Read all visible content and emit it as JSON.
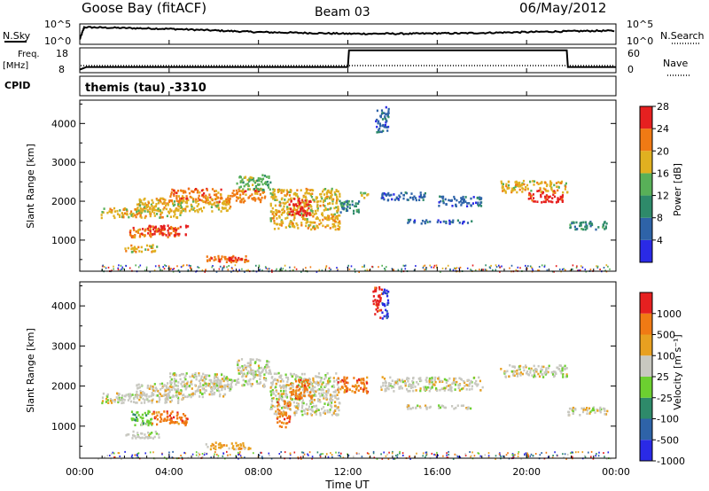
{
  "header": {
    "station": "Goose Bay (fitACF)",
    "beam": "Beam 03",
    "date": "06/May/2012"
  },
  "noise_panel": {
    "left_label": "N.Sky",
    "left_ticks": [
      "10^5",
      "10^0"
    ],
    "right_label": "N.Search",
    "right_ticks": [
      "10^5",
      "10^0"
    ]
  },
  "freq_panel": {
    "left_label_1": "Freq.",
    "left_label_2": "[MHz]",
    "left_ticks": [
      "18",
      "8"
    ],
    "right_label": "Nave",
    "right_ticks": [
      "60",
      "0"
    ]
  },
  "cpid_panel": {
    "label": "CPID",
    "value": "themis (tau) -3310"
  },
  "time_axis": {
    "label": "Time UT",
    "ticks": [
      "00:00",
      "04:00",
      "08:00",
      "12:00",
      "16:00",
      "20:00",
      "00:00"
    ]
  },
  "range_axis": {
    "label": "Slant Range [km]",
    "ticks": [
      "1000",
      "2000",
      "3000",
      "4000"
    ]
  },
  "power_colorbar": {
    "label": "Power [dB]",
    "ticks": [
      "4",
      "8",
      "12",
      "16",
      "20",
      "24",
      "28"
    ],
    "colors": [
      "#2a2ae6",
      "#2e63a8",
      "#2e8a6a",
      "#58b058",
      "#e0b020",
      "#f07a14",
      "#e62020"
    ]
  },
  "velocity_colorbar": {
    "label": "Velocity  [m s⁻¹]",
    "ticks": [
      "1000",
      "500",
      "100",
      "25",
      "-25",
      "-100",
      "-500",
      "-1000"
    ],
    "colors": [
      "#2a2ae6",
      "#2e63a8",
      "#2e8a6a",
      "#6cd030",
      "#c8c8c0",
      "#e8a020",
      "#f07a14",
      "#e62020"
    ]
  },
  "chart_data": {
    "type": "heatmap",
    "x_unit": "hours UT",
    "y_unit": "km",
    "xlim": [
      0,
      24
    ],
    "ylim": [
      200,
      4600
    ],
    "noise_sky": [
      [
        0,
        1.2
      ],
      [
        0.2,
        4.2
      ],
      [
        1,
        4.1
      ],
      [
        2,
        4.0
      ],
      [
        3,
        3.9
      ],
      [
        4,
        3.8
      ],
      [
        5,
        3.6
      ],
      [
        6,
        3.4
      ],
      [
        7,
        3.2
      ],
      [
        8,
        3.0
      ],
      [
        9,
        2.9
      ],
      [
        10,
        2.8
      ],
      [
        11,
        2.7
      ],
      [
        12,
        2.6
      ],
      [
        13,
        2.6
      ],
      [
        14,
        2.6
      ],
      [
        15,
        2.6
      ],
      [
        16,
        2.7
      ],
      [
        17,
        2.7
      ],
      [
        18,
        2.8
      ],
      [
        19,
        2.9
      ],
      [
        20,
        3.0
      ],
      [
        21,
        3.1
      ],
      [
        22,
        3.2
      ],
      [
        23,
        3.3
      ],
      [
        24,
        3.3
      ]
    ],
    "frequency": [
      [
        0,
        9.2
      ],
      [
        0.3,
        10.3
      ],
      [
        12,
        10.3
      ],
      [
        12.05,
        17
      ],
      [
        21.8,
        17
      ],
      [
        21.85,
        10.3
      ],
      [
        24,
        10.3
      ]
    ],
    "power_regions": [
      {
        "t0": 0.9,
        "t1": 4.6,
        "r0": 1600,
        "r1": 1850,
        "level": 4
      },
      {
        "t0": 2.5,
        "t1": 6.8,
        "r0": 1750,
        "r1": 2100,
        "level": 4
      },
      {
        "t0": 4.0,
        "t1": 8.3,
        "r0": 2000,
        "r1": 2350,
        "level": 5
      },
      {
        "t0": 7.0,
        "t1": 8.5,
        "r0": 2300,
        "r1": 2700,
        "level": 3
      },
      {
        "t0": 8.5,
        "t1": 11.6,
        "r0": 1300,
        "r1": 2350,
        "level": 4
      },
      {
        "t0": 9.3,
        "t1": 10.3,
        "r0": 1650,
        "r1": 2100,
        "level": 6
      },
      {
        "t0": 11.6,
        "t1": 12.5,
        "r0": 1700,
        "r1": 2050,
        "level": 2
      },
      {
        "t0": 12.5,
        "t1": 12.9,
        "r0": 2100,
        "r1": 2250,
        "level": 4
      },
      {
        "t0": 2.2,
        "t1": 4.4,
        "r0": 1100,
        "r1": 1350,
        "level": 5
      },
      {
        "t0": 3.0,
        "t1": 4.8,
        "r0": 1150,
        "r1": 1400,
        "level": 6
      },
      {
        "t0": 2.0,
        "t1": 3.5,
        "r0": 720,
        "r1": 900,
        "level": 4
      },
      {
        "t0": 5.6,
        "t1": 7.6,
        "r0": 450,
        "r1": 620,
        "level": 5
      },
      {
        "t0": 6.2,
        "t1": 7.4,
        "r0": 470,
        "r1": 580,
        "level": 6
      },
      {
        "t0": 13.4,
        "t1": 15.5,
        "r0": 2050,
        "r1": 2250,
        "level": 1
      },
      {
        "t0": 16.0,
        "t1": 18.0,
        "r0": 1900,
        "r1": 2150,
        "level": 1
      },
      {
        "t0": 14.6,
        "t1": 17.5,
        "r0": 1450,
        "r1": 1550,
        "level": 1
      },
      {
        "t0": 18.8,
        "t1": 21.8,
        "r0": 2250,
        "r1": 2550,
        "level": 4
      },
      {
        "t0": 20.0,
        "t1": 21.6,
        "r0": 2000,
        "r1": 2300,
        "level": 6
      },
      {
        "t0": 21.8,
        "t1": 23.6,
        "r0": 1300,
        "r1": 1500,
        "level": 2
      },
      {
        "t0": 13.2,
        "t1": 13.8,
        "r0": 3800,
        "r1": 4450,
        "level": 1
      }
    ],
    "velocity_regions": [
      {
        "t0": 0.9,
        "t1": 4.6,
        "r0": 1600,
        "r1": 1850,
        "level": 4
      },
      {
        "t0": 2.5,
        "t1": 6.8,
        "r0": 1750,
        "r1": 2100,
        "level": 4
      },
      {
        "t0": 4.0,
        "t1": 8.3,
        "r0": 2000,
        "r1": 2350,
        "level": 4
      },
      {
        "t0": 7.0,
        "t1": 8.5,
        "r0": 2300,
        "r1": 2700,
        "level": 4
      },
      {
        "t0": 8.5,
        "t1": 11.6,
        "r0": 1300,
        "r1": 2350,
        "level": 4
      },
      {
        "t0": 9.4,
        "t1": 10.4,
        "r0": 1700,
        "r1": 2200,
        "level": 6
      },
      {
        "t0": 8.8,
        "t1": 9.4,
        "r0": 1000,
        "r1": 1650,
        "level": 6
      },
      {
        "t0": 11.5,
        "t1": 12.9,
        "r0": 1850,
        "r1": 2250,
        "level": 6
      },
      {
        "t0": 2.2,
        "t1": 3.2,
        "r0": 1050,
        "r1": 1400,
        "level": 3
      },
      {
        "t0": 3.2,
        "t1": 4.8,
        "r0": 1050,
        "r1": 1400,
        "level": 6
      },
      {
        "t0": 2.0,
        "t1": 3.6,
        "r0": 720,
        "r1": 900,
        "level": 4
      },
      {
        "t0": 5.6,
        "t1": 7.6,
        "r0": 450,
        "r1": 620,
        "level": 5
      },
      {
        "t0": 13.4,
        "t1": 18.0,
        "r0": 1900,
        "r1": 2250,
        "level": 4
      },
      {
        "t0": 14.6,
        "t1": 17.5,
        "r0": 1450,
        "r1": 1550,
        "level": 4
      },
      {
        "t0": 18.8,
        "t1": 21.8,
        "r0": 2250,
        "r1": 2550,
        "level": 4
      },
      {
        "t0": 21.8,
        "t1": 23.6,
        "r0": 1300,
        "r1": 1500,
        "level": 4
      },
      {
        "t0": 13.1,
        "t1": 13.5,
        "r0": 3700,
        "r1": 4500,
        "level": 7
      },
      {
        "t0": 13.5,
        "t1": 13.8,
        "r0": 3700,
        "r1": 4500,
        "level": 0
      }
    ]
  }
}
